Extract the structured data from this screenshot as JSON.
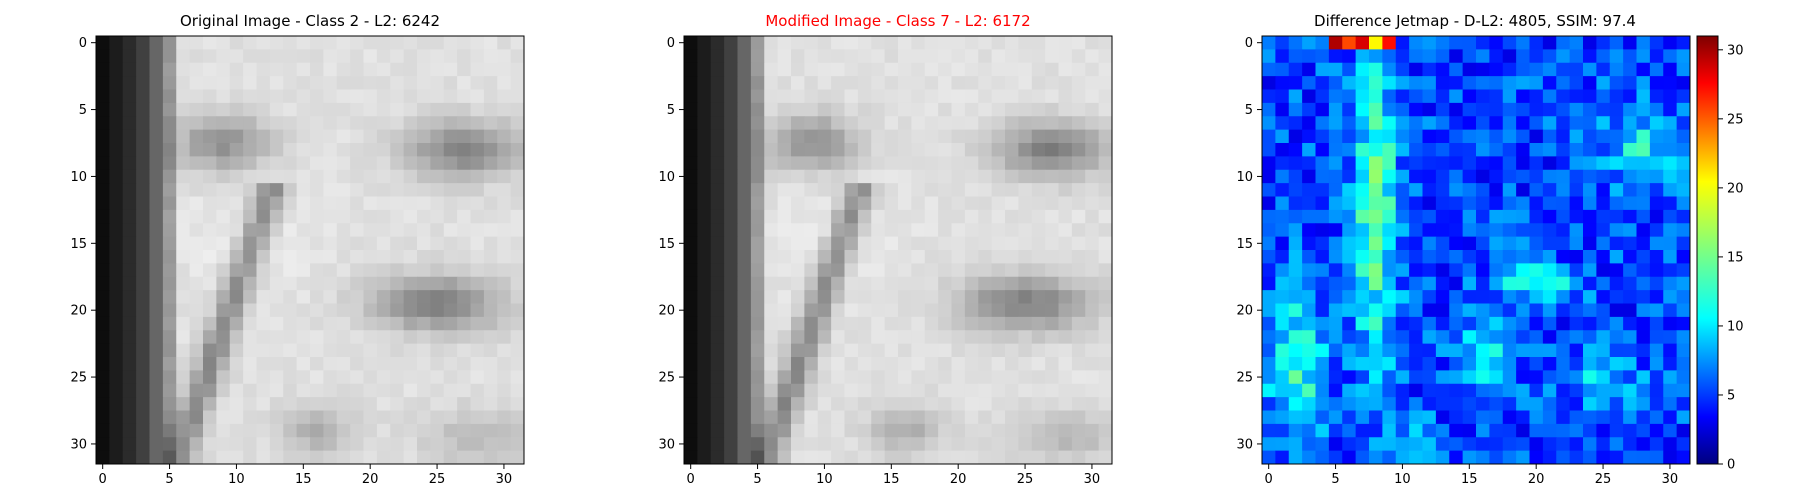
{
  "panels": [
    {
      "title": "Original Image - Class 2 - L2: 6242",
      "title_color": "#000000",
      "colormap": "gray",
      "xticks": [
        "0",
        "5",
        "10",
        "15",
        "20",
        "25",
        "30"
      ],
      "yticks": [
        "0",
        "5",
        "10",
        "15",
        "20",
        "25",
        "30"
      ]
    },
    {
      "title": "Modified Image - Class 7 - L2: 6172",
      "title_color": "#ff0000",
      "colormap": "gray",
      "xticks": [
        "0",
        "5",
        "10",
        "15",
        "20",
        "25",
        "30"
      ],
      "yticks": [
        "0",
        "5",
        "10",
        "15",
        "20",
        "25",
        "30"
      ]
    },
    {
      "title": "Difference Jetmap - D-L2: 4805, SSIM: 97.4",
      "title_color": "#000000",
      "colormap": "jet",
      "xticks": [
        "0",
        "5",
        "10",
        "15",
        "20",
        "25",
        "30"
      ],
      "yticks": [
        "0",
        "5",
        "10",
        "15",
        "20",
        "25",
        "30"
      ]
    }
  ],
  "colorbar": {
    "ticks": [
      "0",
      "5",
      "10",
      "15",
      "20",
      "25",
      "30"
    ],
    "range": [
      0,
      31
    ]
  },
  "chart_data": [
    {
      "type": "heatmap",
      "title": "Original Image - Class 2 - L2: 6242",
      "x_range": [
        0,
        31
      ],
      "y_range": [
        0,
        31
      ],
      "grid": false
    },
    {
      "type": "heatmap",
      "title": "Modified Image - Class 7 - L2: 6172",
      "x_range": [
        0,
        31
      ],
      "y_range": [
        0,
        31
      ],
      "grid": false
    },
    {
      "type": "heatmap",
      "title": "Difference Jetmap - D-L2: 4805, SSIM: 97.4",
      "x_range": [
        0,
        31
      ],
      "y_range": [
        0,
        31
      ],
      "value_range": [
        0,
        31
      ],
      "grid": false
    }
  ]
}
